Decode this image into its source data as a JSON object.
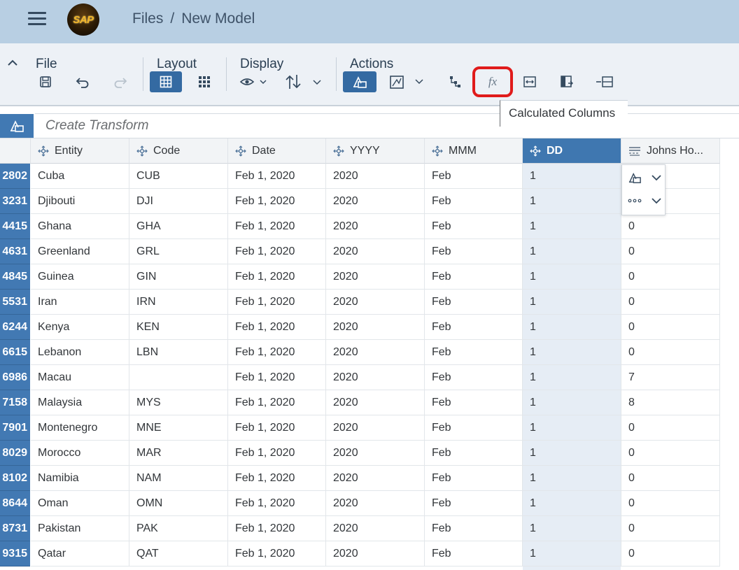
{
  "shell": {
    "breadcrumb_root": "Files",
    "breadcrumb_sep": "/",
    "breadcrumb_current": "New Model",
    "logo_text": "SAP"
  },
  "toolbar": {
    "file_label": "File",
    "layout_label": "Layout",
    "display_label": "Display",
    "actions_label": "Actions",
    "tooltip": "Calculated Columns",
    "fx_label": "fx"
  },
  "transform": {
    "placeholder": "Create Transform"
  },
  "grid": {
    "columns": [
      "Entity",
      "Code",
      "Date",
      "YYYY",
      "MMM",
      "DD",
      "Johns Ho..."
    ],
    "active_column": "DD",
    "rows": [
      {
        "id": "2802",
        "cells": [
          "Cuba",
          "CUB",
          "Feb 1, 2020",
          "2020",
          "Feb",
          "1",
          ""
        ]
      },
      {
        "id": "3231",
        "cells": [
          "Djibouti",
          "DJI",
          "Feb 1, 2020",
          "2020",
          "Feb",
          "1",
          ""
        ]
      },
      {
        "id": "4415",
        "cells": [
          "Ghana",
          "GHA",
          "Feb 1, 2020",
          "2020",
          "Feb",
          "1",
          "0"
        ]
      },
      {
        "id": "4631",
        "cells": [
          "Greenland",
          "GRL",
          "Feb 1, 2020",
          "2020",
          "Feb",
          "1",
          "0"
        ]
      },
      {
        "id": "4845",
        "cells": [
          "Guinea",
          "GIN",
          "Feb 1, 2020",
          "2020",
          "Feb",
          "1",
          "0"
        ]
      },
      {
        "id": "5531",
        "cells": [
          "Iran",
          "IRN",
          "Feb 1, 2020",
          "2020",
          "Feb",
          "1",
          "0"
        ]
      },
      {
        "id": "6244",
        "cells": [
          "Kenya",
          "KEN",
          "Feb 1, 2020",
          "2020",
          "Feb",
          "1",
          "0"
        ]
      },
      {
        "id": "6615",
        "cells": [
          "Lebanon",
          "LBN",
          "Feb 1, 2020",
          "2020",
          "Feb",
          "1",
          "0"
        ]
      },
      {
        "id": "6986",
        "cells": [
          "Macau",
          "",
          "Feb 1, 2020",
          "2020",
          "Feb",
          "1",
          "7"
        ]
      },
      {
        "id": "7158",
        "cells": [
          "Malaysia",
          "MYS",
          "Feb 1, 2020",
          "2020",
          "Feb",
          "1",
          "8"
        ]
      },
      {
        "id": "7901",
        "cells": [
          "Montenegro",
          "MNE",
          "Feb 1, 2020",
          "2020",
          "Feb",
          "1",
          "0"
        ]
      },
      {
        "id": "8029",
        "cells": [
          "Morocco",
          "MAR",
          "Feb 1, 2020",
          "2020",
          "Feb",
          "1",
          "0"
        ]
      },
      {
        "id": "8102",
        "cells": [
          "Namibia",
          "NAM",
          "Feb 1, 2020",
          "2020",
          "Feb",
          "1",
          "0"
        ]
      },
      {
        "id": "8644",
        "cells": [
          "Oman",
          "OMN",
          "Feb 1, 2020",
          "2020",
          "Feb",
          "1",
          "0"
        ]
      },
      {
        "id": "8731",
        "cells": [
          "Pakistan",
          "PAK",
          "Feb 1, 2020",
          "2020",
          "Feb",
          "1",
          "0"
        ]
      },
      {
        "id": "9315",
        "cells": [
          "Qatar",
          "QAT",
          "Feb 1, 2020",
          "2020",
          "Feb",
          "1",
          "0"
        ]
      }
    ]
  },
  "colors": {
    "shell_bg": "#b8cfe3",
    "toolbar_bg": "#edf1f6",
    "accent": "#346aa2",
    "highlight_border": "#e01b1b"
  }
}
